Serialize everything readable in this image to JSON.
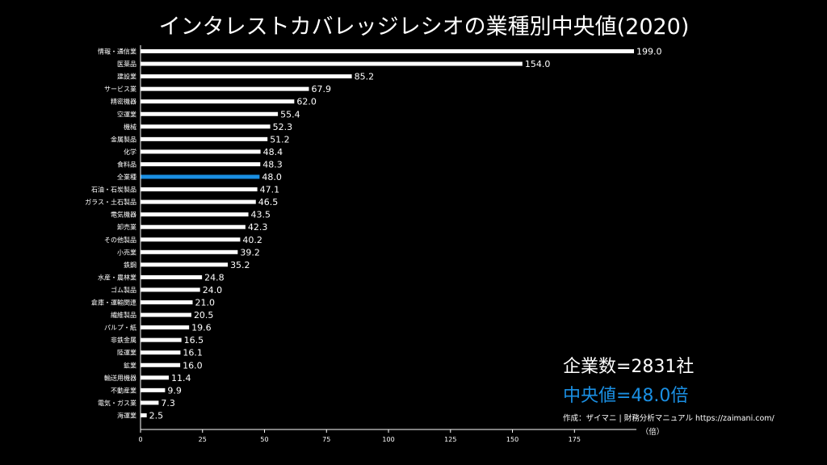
{
  "chart_data": {
    "type": "bar",
    "orientation": "horizontal",
    "title": "インタレストカバレッジレシオの業種別中央値(2020)",
    "categories": [
      "情報・通信業",
      "医薬品",
      "建設業",
      "サービス業",
      "精密機器",
      "空運業",
      "機械",
      "金属製品",
      "化学",
      "食料品",
      "全業種",
      "石油・石炭製品",
      "ガラス・土石製品",
      "電気機器",
      "卸売業",
      "その他製品",
      "小売業",
      "鉄鋼",
      "水産・農林業",
      "ゴム製品",
      "倉庫・運輸関連",
      "繊維製品",
      "パルプ・紙",
      "非鉄金属",
      "陸運業",
      "鉱業",
      "輸送用機器",
      "不動産業",
      "電気・ガス業",
      "海運業"
    ],
    "values": [
      199.0,
      154.0,
      85.2,
      67.9,
      62.0,
      55.4,
      52.3,
      51.2,
      48.4,
      48.3,
      48.0,
      47.1,
      46.5,
      43.5,
      42.3,
      40.2,
      39.2,
      35.2,
      24.8,
      24.0,
      21.0,
      20.5,
      19.6,
      16.5,
      16.1,
      16.0,
      11.4,
      9.9,
      7.3,
      2.5
    ],
    "value_labels": [
      "199.0",
      "154.0",
      "85.2",
      "67.9",
      "62.0",
      "55.4",
      "52.3",
      "51.2",
      "48.4",
      "48.3",
      "48.0",
      "47.1",
      "46.5",
      "43.5",
      "42.3",
      "40.2",
      "39.2",
      "35.2",
      "24.8",
      "24.0",
      "21.0",
      "20.5",
      "19.6",
      "16.5",
      "16.1",
      "16.0",
      "11.4",
      "9.9",
      "7.3",
      "2.5"
    ],
    "highlight_category": "全業種",
    "xlim": [
      0,
      199
    ],
    "xticks": [
      0,
      25,
      50,
      75,
      100,
      125,
      150,
      175
    ],
    "xlabel": "（倍）",
    "grid": false,
    "bar_color": "#ffffff",
    "highlight_color": "#1a8fe3",
    "background": "#000000"
  },
  "annotations": {
    "company_count": "企業数=2831社",
    "median_text": "中央値=48.0倍",
    "credit": "作成：ザイマニ | 財務分析マニュアル https://zaimani.com/"
  }
}
